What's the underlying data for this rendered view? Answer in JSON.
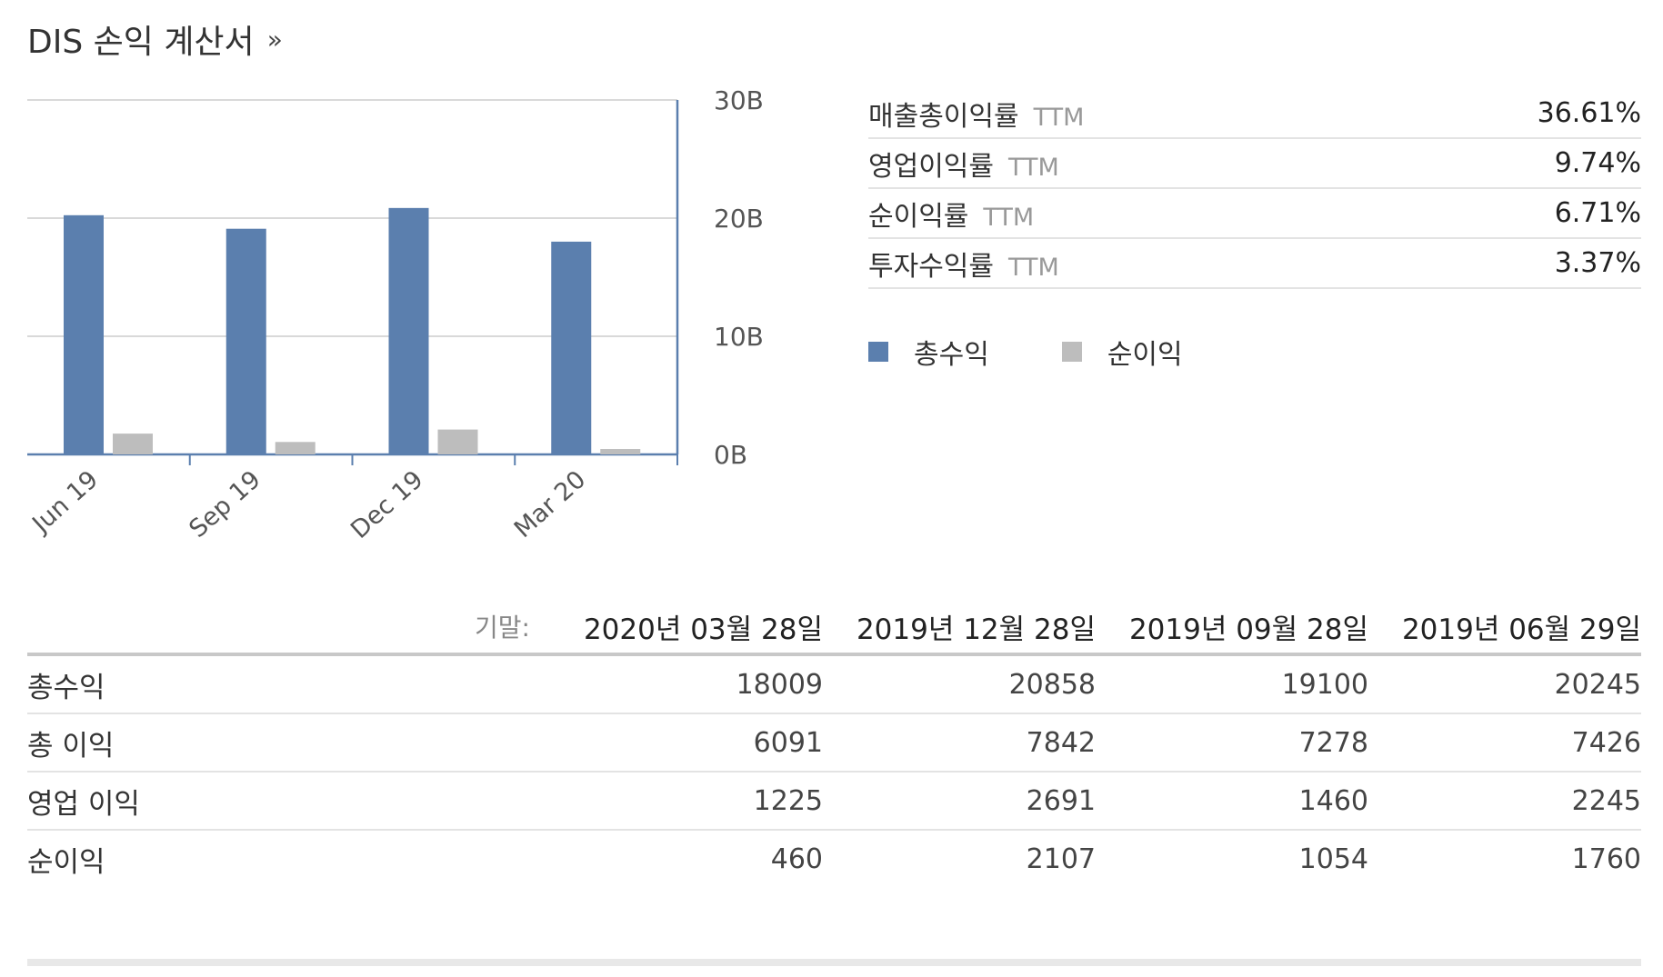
{
  "title": "DIS 손익 계산서",
  "title_more": "»",
  "chart_data": {
    "type": "bar",
    "categories": [
      "Jun 19",
      "Sep 19",
      "Dec 19",
      "Mar 20"
    ],
    "series": [
      {
        "name": "총수익",
        "color": "#5b7fae",
        "values": [
          20.245,
          19.1,
          20.858,
          18.009
        ]
      },
      {
        "name": "순이익",
        "color": "#bdbdbd",
        "values": [
          1.76,
          1.054,
          2.107,
          0.46
        ]
      }
    ],
    "ylim": [
      0,
      30
    ],
    "yticks": [
      "0B",
      "10B",
      "20B",
      "30B"
    ],
    "ytick_values": [
      0,
      10,
      20,
      30
    ],
    "y_axis_side": "right",
    "grid": true
  },
  "ratios": [
    {
      "label": "매출총이익률",
      "ttm": "TTM",
      "value": "36.61%"
    },
    {
      "label": "영업이익률",
      "ttm": "TTM",
      "value": "9.74%"
    },
    {
      "label": "순이익률",
      "ttm": "TTM",
      "value": "6.71%"
    },
    {
      "label": "투자수익률",
      "ttm": "TTM",
      "value": "3.37%"
    }
  ],
  "legend": [
    {
      "label": "총수익",
      "color": "#5b7fae"
    },
    {
      "label": "순이익",
      "color": "#bdbdbd"
    }
  ],
  "table": {
    "period_label": "기말:",
    "columns": [
      "2020년 03월 28일",
      "2019년 12월 28일",
      "2019년 09월 28일",
      "2019년 06월 29일"
    ],
    "rows": [
      {
        "name": "총수익",
        "values": [
          "18009",
          "20858",
          "19100",
          "20245"
        ]
      },
      {
        "name": "총 이익",
        "values": [
          "6091",
          "7842",
          "7278",
          "7426"
        ]
      },
      {
        "name": "영업 이익",
        "values": [
          "1225",
          "2691",
          "1460",
          "2245"
        ]
      },
      {
        "name": "순이익",
        "values": [
          "460",
          "2107",
          "1054",
          "1760"
        ]
      }
    ]
  }
}
